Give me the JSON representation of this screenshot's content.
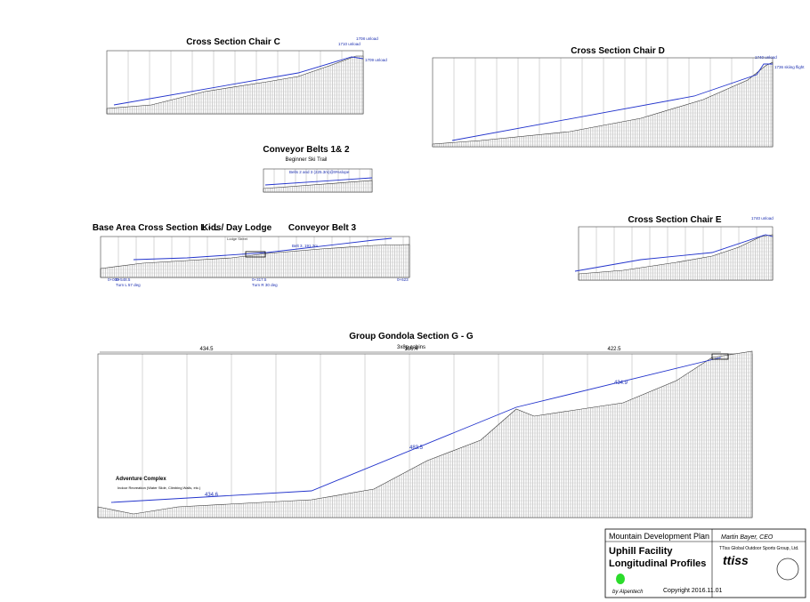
{
  "panels": {
    "chair_c": {
      "title": "Cross Section Chair C",
      "labels": [
        "1710 unload",
        "1708 unload",
        "1709 unload"
      ]
    },
    "chair_d": {
      "title": "Cross Section Chair D",
      "labels": [
        "1740 unload",
        "1736 skiing flight"
      ]
    },
    "belts": {
      "title": "Conveyor Belts 1& 2",
      "subtitle": "Beginner Ski Trail",
      "labels": [
        "Belts 2 and 3 (225.3m)@9%slope"
      ]
    },
    "base": {
      "title": "Base Area Cross Section  L - L",
      "title2": "Kids/ Day Lodge",
      "title3": "Conveyor Belt 3",
      "labels": [
        "Lodge Street",
        "Belt 3, 191.2m"
      ],
      "stations": [
        "0+000",
        "0+548.5",
        "Turn L 57 deg",
        "0+317.5",
        "Turn R 30 deg",
        "0+623"
      ]
    },
    "chair_e": {
      "title": "Cross Section Chair E",
      "labels": [
        "1740 unload"
      ]
    },
    "gondola": {
      "title": "Group Gondola Section  G - G",
      "subtitle": "3x8p cabins",
      "spans": [
        "434.5",
        "386.4",
        "422.5"
      ],
      "slopes": [
        "434.6",
        "483.5",
        "434.9"
      ],
      "feature": "Adventure Complex",
      "feature_note": "Indoor Recreation (Water Slide, Climbing Walls, etc.)"
    }
  },
  "title_block": {
    "plan": "Mountain Development Plan",
    "author": "Martin Bayer, CEO",
    "line1": "Uphill Facility",
    "line2": "Longitudinal Profiles",
    "company": "TTiss Global Outdoor Sports Group, Ltd.",
    "logo": "ttiss",
    "by": "by Alpentech",
    "copyright": "Copyright 2016.11.01"
  }
}
